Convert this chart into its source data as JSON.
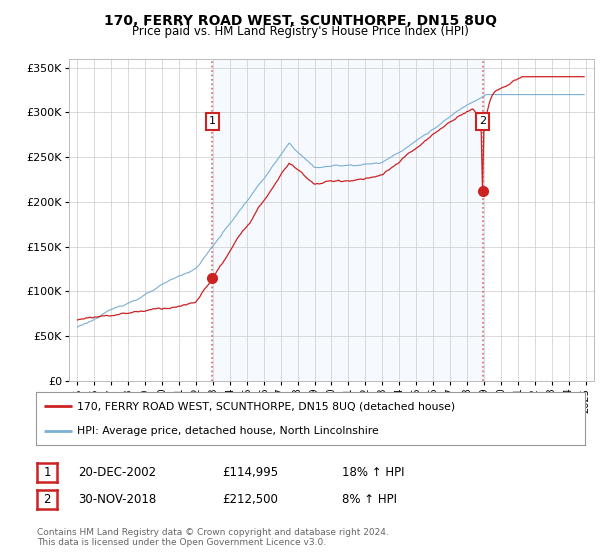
{
  "title": "170, FERRY ROAD WEST, SCUNTHORPE, DN15 8UQ",
  "subtitle": "Price paid vs. HM Land Registry's House Price Index (HPI)",
  "ylabel_ticks": [
    "£0",
    "£50K",
    "£100K",
    "£150K",
    "£200K",
    "£250K",
    "£300K",
    "£350K"
  ],
  "ytick_values": [
    0,
    50000,
    100000,
    150000,
    200000,
    250000,
    300000,
    350000
  ],
  "ylim": [
    0,
    360000
  ],
  "xlim_start": 1994.5,
  "xlim_end": 2025.5,
  "hpi_color": "#7bafd4",
  "price_color": "#cc2222",
  "vline_color": "#dd6666",
  "marker1_x": 2002.97,
  "marker1_y": 114995,
  "marker1_label": "1",
  "marker2_x": 2018.92,
  "marker2_y": 212500,
  "marker2_label": "2",
  "shade_color": "#ddeeff",
  "legend_entry1": "170, FERRY ROAD WEST, SCUNTHORPE, DN15 8UQ (detached house)",
  "legend_entry2": "HPI: Average price, detached house, North Lincolnshire",
  "table_row1": [
    "1",
    "20-DEC-2002",
    "£114,995",
    "18% ↑ HPI"
  ],
  "table_row2": [
    "2",
    "30-NOV-2018",
    "£212,500",
    "8% ↑ HPI"
  ],
  "footnote": "Contains HM Land Registry data © Crown copyright and database right 2024.\nThis data is licensed under the Open Government Licence v3.0.",
  "background_color": "#ffffff",
  "plot_bg_color": "#ffffff"
}
